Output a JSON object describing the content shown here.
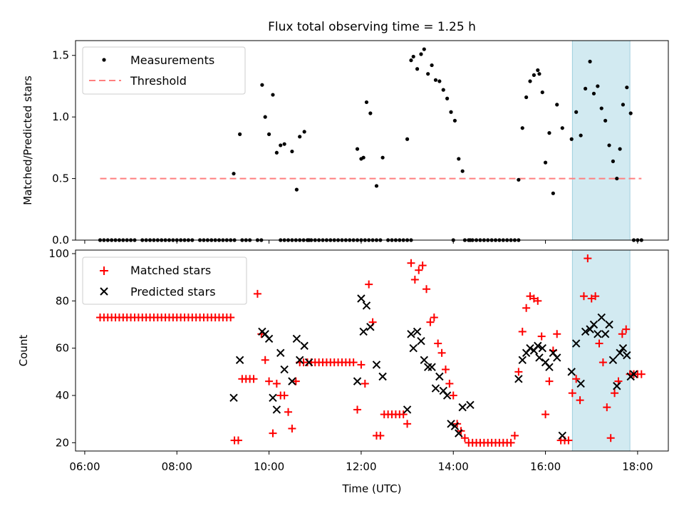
{
  "title": "Flux total observing time = 1.25 h",
  "colors": {
    "measurement": "#000000",
    "threshold": "#ff7f7f",
    "matched": "#ff0000",
    "predicted": "#000000",
    "highlight": "#add8e6"
  },
  "chart_data": [
    {
      "type": "scatter",
      "panel": "top",
      "xlabel": "",
      "ylabel": "Matched/Predicted stars",
      "xlim": [
        "05:48",
        "18:40"
      ],
      "ylim": [
        0,
        1.62
      ],
      "yticks": [
        0.0,
        0.5,
        1.0,
        1.5
      ],
      "ytick_labels": [
        "0.0",
        "0.5",
        "1.0",
        "1.5"
      ],
      "grid": false,
      "legend": {
        "placement": "top-left",
        "entries": [
          "Measurements",
          "Threshold"
        ]
      },
      "highlight_span": {
        "x": [
          "16:35",
          "17:50"
        ]
      },
      "threshold": {
        "name": "Threshold",
        "y": 0.5,
        "x": [
          "06:20",
          "18:05"
        ],
        "style": "dashed"
      },
      "series": [
        {
          "name": "Measurements",
          "marker": "dot",
          "x": [
            "06:20",
            "06:25",
            "06:30",
            "06:35",
            "06:40",
            "06:45",
            "06:50",
            "06:55",
            "07:00",
            "07:05",
            "07:15",
            "07:20",
            "07:25",
            "07:30",
            "07:35",
            "07:40",
            "07:45",
            "07:50",
            "07:55",
            "08:00",
            "08:05",
            "08:10",
            "08:15",
            "08:20",
            "08:30",
            "08:35",
            "08:40",
            "08:45",
            "08:50",
            "08:55",
            "09:00",
            "09:05",
            "09:10",
            "09:15",
            "09:25",
            "09:30",
            "09:35",
            "09:45",
            "09:50",
            "10:15",
            "10:20",
            "10:25",
            "10:30",
            "10:35",
            "10:40",
            "10:45",
            "10:50",
            "10:55",
            "11:00",
            "11:05",
            "11:10",
            "11:15",
            "11:20",
            "11:25",
            "11:30",
            "11:35",
            "11:40",
            "11:45",
            "11:50",
            "11:55",
            "12:00",
            "12:05",
            "12:10",
            "12:15",
            "12:20",
            "12:25",
            "12:35",
            "12:40",
            "12:45",
            "12:50",
            "12:55",
            "13:00",
            "13:05",
            "14:00",
            "14:15",
            "14:20",
            "14:25",
            "14:30",
            "14:35",
            "14:40",
            "14:45",
            "14:50",
            "14:55",
            "15:00",
            "15:05",
            "15:10",
            "15:15",
            "15:20",
            "15:25",
            "18:00",
            "18:05",
            "09:14",
            "09:22",
            "09:51",
            "09:55",
            "10:00",
            "10:05",
            "10:10",
            "10:15",
            "10:20",
            "10:30",
            "10:36",
            "10:40",
            "10:46",
            "10:52",
            "11:55",
            "12:00",
            "12:03",
            "12:07",
            "12:12",
            "12:20",
            "12:28",
            "13:00",
            "13:05",
            "13:08",
            "13:13",
            "13:18",
            "13:22",
            "13:27",
            "13:32",
            "13:37",
            "13:42",
            "13:47",
            "13:52",
            "13:57",
            "14:02",
            "14:07",
            "14:12",
            "14:22",
            "15:25",
            "15:30",
            "15:35",
            "15:40",
            "15:45",
            "15:50",
            "15:52",
            "15:56",
            "16:00",
            "16:05",
            "16:10",
            "16:15",
            "16:22",
            "16:34",
            "16:40",
            "16:46",
            "16:52",
            "16:58",
            "17:03",
            "17:08",
            "17:13",
            "17:18",
            "17:23",
            "17:28",
            "17:33",
            "17:37",
            "17:41",
            "17:46",
            "17:51",
            "17:55"
          ],
          "y": [
            0,
            0,
            0,
            0,
            0,
            0,
            0,
            0,
            0,
            0,
            0,
            0,
            0,
            0,
            0,
            0,
            0,
            0,
            0,
            0,
            0,
            0,
            0,
            0,
            0,
            0,
            0,
            0,
            0,
            0,
            0,
            0,
            0,
            0,
            0,
            0,
            0,
            0,
            0,
            0,
            0,
            0,
            0,
            0,
            0,
            0,
            0,
            0,
            0,
            0,
            0,
            0,
            0,
            0,
            0,
            0,
            0,
            0,
            0,
            0,
            0,
            0,
            0,
            0,
            0,
            0,
            0,
            0,
            0,
            0,
            0,
            0,
            0,
            0,
            0,
            0,
            0,
            0,
            0,
            0,
            0,
            0,
            0,
            0,
            0,
            0,
            0,
            0,
            0,
            0,
            0,
            0.54,
            0.86,
            1.26,
            1.0,
            0.86,
            1.18,
            0.71,
            0.77,
            0.78,
            0.72,
            0.41,
            0.84,
            0.88,
            0.0,
            0.74,
            0.66,
            0.67,
            1.12,
            1.03,
            0.44,
            0.67,
            0.82,
            1.46,
            1.49,
            1.39,
            1.51,
            1.55,
            1.35,
            1.42,
            1.3,
            1.29,
            1.22,
            1.15,
            1.04,
            0.97,
            0.66,
            0.56,
            0.0,
            0.49,
            0.91,
            1.16,
            1.29,
            1.34,
            1.38,
            1.35,
            1.2,
            0.63,
            0.87,
            0.38,
            1.1,
            0.91,
            0.82,
            1.04,
            0.85,
            1.23,
            1.45,
            1.19,
            1.25,
            1.07,
            0.97,
            0.77,
            0.64,
            0.5,
            0.74,
            1.1,
            1.24,
            1.03,
            0.0
          ]
        }
      ]
    },
    {
      "type": "scatter",
      "panel": "bottom",
      "xlabel": "Time (UTC)",
      "ylabel": "Count",
      "xlim": [
        "05:48",
        "18:40"
      ],
      "xtick_labels": [
        "06:00",
        "08:00",
        "10:00",
        "12:00",
        "14:00",
        "16:00",
        "18:00"
      ],
      "ylim": [
        16.5,
        101.5
      ],
      "yticks": [
        20,
        40,
        60,
        80,
        100
      ],
      "ytick_labels": [
        "20",
        "40",
        "60",
        "80",
        "100"
      ],
      "grid": false,
      "legend": {
        "placement": "top-left",
        "entries": [
          "Matched stars",
          "Predicted stars"
        ]
      },
      "highlight_span": {
        "x": [
          "16:35",
          "17:50"
        ]
      },
      "series": [
        {
          "name": "Matched stars",
          "marker": "plus",
          "x": [
            "06:20",
            "06:25",
            "06:30",
            "06:35",
            "06:40",
            "06:45",
            "06:50",
            "06:55",
            "07:00",
            "07:05",
            "07:10",
            "07:15",
            "07:20",
            "07:25",
            "07:30",
            "07:35",
            "07:40",
            "07:45",
            "07:50",
            "07:55",
            "08:00",
            "08:05",
            "08:10",
            "08:15",
            "08:20",
            "08:25",
            "08:30",
            "08:35",
            "08:40",
            "08:45",
            "08:50",
            "08:55",
            "09:00",
            "09:05",
            "09:10",
            "09:15",
            "09:20",
            "09:25",
            "09:30",
            "09:35",
            "09:40",
            "09:45",
            "09:50",
            "09:55",
            "10:00",
            "10:05",
            "10:10",
            "10:15",
            "10:20",
            "10:25",
            "10:30",
            "10:35",
            "10:40",
            "10:45",
            "10:50",
            "10:55",
            "11:00",
            "11:05",
            "11:10",
            "11:15",
            "11:20",
            "11:25",
            "11:30",
            "11:35",
            "11:40",
            "11:45",
            "11:50",
            "11:55",
            "12:00",
            "12:05",
            "12:10",
            "12:15",
            "12:20",
            "12:25",
            "12:30",
            "12:35",
            "12:40",
            "12:45",
            "12:50",
            "12:55",
            "13:00",
            "13:05",
            "13:10",
            "13:15",
            "13:20",
            "13:25",
            "13:30",
            "13:35",
            "13:40",
            "13:45",
            "13:50",
            "13:55",
            "14:00",
            "14:05",
            "14:10",
            "14:15",
            "14:20",
            "14:25",
            "14:30",
            "14:35",
            "14:40",
            "14:45",
            "14:50",
            "14:55",
            "15:00",
            "15:05",
            "15:10",
            "15:15",
            "15:20",
            "15:25",
            "15:30",
            "15:35",
            "15:40",
            "15:45",
            "15:50",
            "15:55",
            "16:00",
            "16:05",
            "16:10",
            "16:15",
            "16:20",
            "16:25",
            "16:30",
            "16:35",
            "16:40",
            "16:45",
            "16:50",
            "16:55",
            "17:00",
            "17:05",
            "17:10",
            "17:15",
            "17:20",
            "17:25",
            "17:30",
            "17:35",
            "17:40",
            "17:45",
            "17:50",
            "17:55",
            "18:00",
            "18:05"
          ],
          "y": [
            73,
            73,
            73,
            73,
            73,
            73,
            73,
            73,
            73,
            73,
            73,
            73,
            73,
            73,
            73,
            73,
            73,
            73,
            73,
            73,
            73,
            73,
            73,
            73,
            73,
            73,
            73,
            73,
            73,
            73,
            73,
            73,
            73,
            73,
            73,
            21,
            21,
            47,
            47,
            47,
            47,
            83,
            66,
            55,
            46,
            24,
            45,
            40,
            40,
            33,
            26,
            46,
            54,
            54,
            54,
            54,
            54,
            54,
            54,
            54,
            54,
            54,
            54,
            54,
            54,
            54,
            54,
            34,
            53,
            45,
            87,
            71,
            23,
            23,
            32,
            32,
            32,
            32,
            32,
            32,
            28,
            96,
            89,
            93,
            95,
            85,
            71,
            73,
            62,
            58,
            51,
            45,
            40,
            28,
            25,
            22,
            20,
            20,
            20,
            20,
            20,
            20,
            20,
            20,
            20,
            20,
            20,
            20,
            23,
            50,
            67,
            77,
            82,
            81,
            80,
            65,
            32,
            46,
            59,
            66,
            21,
            21,
            21,
            41,
            47,
            38,
            82,
            98,
            81,
            82,
            62,
            54,
            35,
            22,
            41,
            46,
            66,
            68,
            49,
            49,
            49,
            49
          ],
          "notes": ""
        },
        {
          "name": "Predicted stars",
          "marker": "x",
          "x": [
            "09:14",
            "09:22",
            "09:51",
            "09:55",
            "10:00",
            "10:05",
            "10:10",
            "10:15",
            "10:20",
            "10:30",
            "10:36",
            "10:40",
            "10:46",
            "10:52",
            "11:55",
            "12:00",
            "12:03",
            "12:07",
            "12:12",
            "12:20",
            "12:28",
            "13:00",
            "13:05",
            "13:08",
            "13:13",
            "13:18",
            "13:22",
            "13:27",
            "13:32",
            "13:37",
            "13:42",
            "13:47",
            "13:52",
            "13:57",
            "14:02",
            "14:07",
            "14:12",
            "14:22",
            "15:25",
            "15:30",
            "15:35",
            "15:40",
            "15:45",
            "15:50",
            "15:52",
            "15:56",
            "16:00",
            "16:05",
            "16:10",
            "16:15",
            "16:22",
            "16:34",
            "16:40",
            "16:46",
            "16:52",
            "16:58",
            "17:03",
            "17:08",
            "17:13",
            "17:18",
            "17:23",
            "17:28",
            "17:33",
            "17:37",
            "17:41",
            "17:46",
            "17:51",
            "17:55"
          ],
          "y": [
            39,
            55,
            67,
            66,
            64,
            39,
            34,
            58,
            51,
            46,
            64,
            55,
            61,
            54,
            46,
            81,
            67,
            78,
            69,
            53,
            48,
            34,
            66,
            60,
            67,
            63,
            55,
            52,
            52,
            43,
            48,
            42,
            40,
            28,
            27,
            24,
            35,
            36,
            47,
            55,
            58,
            60,
            59,
            61,
            56,
            60,
            54,
            52,
            58,
            56,
            23,
            50,
            62,
            45,
            67,
            68,
            70,
            66,
            73,
            66,
            70,
            55,
            44,
            58,
            60,
            57,
            48,
            49
          ],
          "notes": ""
        }
      ]
    }
  ]
}
